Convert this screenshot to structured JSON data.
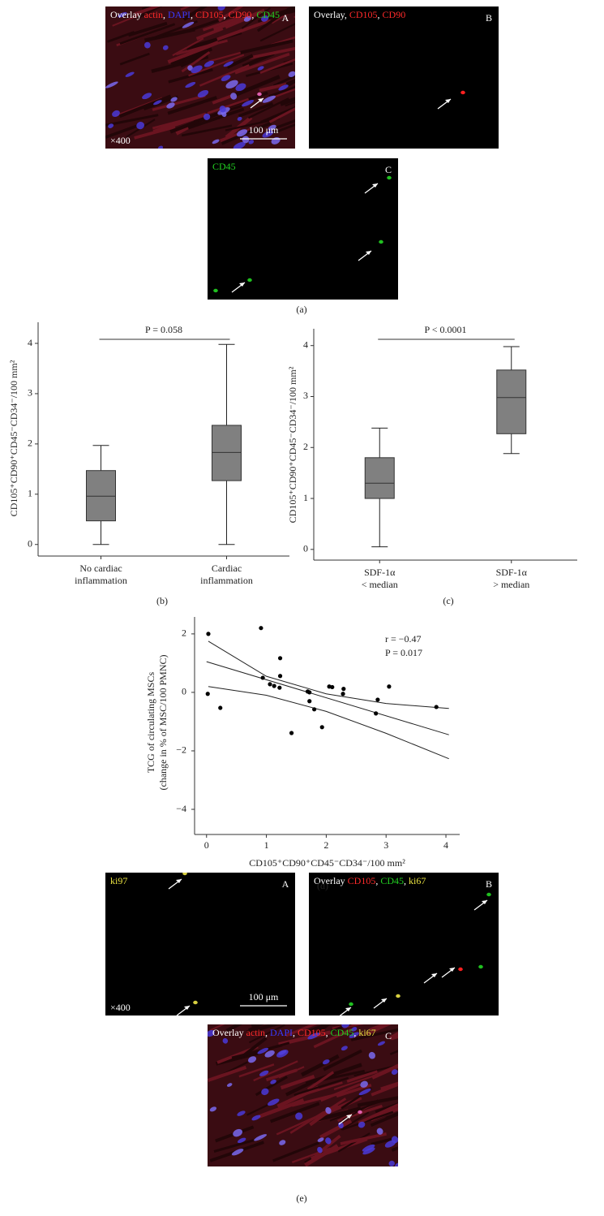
{
  "panel_a": {
    "caption": "(a)",
    "images": [
      {
        "letter": "A",
        "style": "tissue",
        "label": [
          {
            "text": "Overlay ",
            "color": "#ffffff"
          },
          {
            "text": "actin",
            "color": "#ff2a2a"
          },
          {
            "text": ", ",
            "color": "#ffffff"
          },
          {
            "text": "DAPI",
            "color": "#3a3aff"
          },
          {
            "text": ", ",
            "color": "#ffffff"
          },
          {
            "text": "CD105",
            "color": "#ff2a2a"
          },
          {
            "text": ", ",
            "color": "#ffffff"
          },
          {
            "text": "CD90",
            "color": "#ff2a2a"
          },
          {
            "text": ", ",
            "color": "#ffffff"
          },
          {
            "text": "CD45",
            "color": "#22d022"
          }
        ],
        "magnification": "×400",
        "scale_bar": "100 μm"
      },
      {
        "letter": "B",
        "style": "dark",
        "label": [
          {
            "text": "Overlay, ",
            "color": "#ffffff"
          },
          {
            "text": "CD105",
            "color": "#ff2a2a"
          },
          {
            "text": ", ",
            "color": "#ffffff"
          },
          {
            "text": "CD90",
            "color": "#ff2a2a"
          }
        ]
      },
      {
        "letter": "C",
        "style": "dark",
        "label": [
          {
            "text": "CD45",
            "color": "#22d022"
          }
        ]
      }
    ]
  },
  "chart_data": [
    {
      "type": "box",
      "caption": "(b)",
      "y_label": "CD105⁺CD90⁺CD45⁻CD34⁻/100 mm²",
      "categories": [
        "No cardiac\ninflammation",
        "Cardiac\ninflammation"
      ],
      "boxes": [
        {
          "min": 0,
          "q1": 0.47,
          "median": 0.96,
          "q3": 1.47,
          "max": 1.97
        },
        {
          "min": 0,
          "q1": 1.27,
          "median": 1.83,
          "q3": 2.37,
          "max": 3.98
        }
      ],
      "color": "#808080",
      "ylim": [
        -0.23,
        4.42
      ],
      "yticks": [
        0,
        1,
        2,
        3,
        4
      ],
      "annotation": "P = 0.058"
    },
    {
      "type": "box",
      "caption": "(c)",
      "y_label": "CD105⁺CD90⁺CD45⁻CD34⁻/100 mm²",
      "categories": [
        "SDF-1α\n< median",
        "SDF-1α\n> median"
      ],
      "boxes": [
        {
          "min": 0.05,
          "q1": 1.0,
          "median": 1.3,
          "q3": 1.8,
          "max": 2.38
        },
        {
          "min": 1.88,
          "q1": 2.27,
          "median": 2.98,
          "q3": 3.52,
          "max": 3.98
        }
      ],
      "color": "#808080",
      "ylim": [
        -0.21,
        4.33
      ],
      "yticks": [
        0,
        1,
        2,
        3,
        4
      ],
      "annotation": "P < 0.0001"
    },
    {
      "type": "scatter",
      "caption": "(d)",
      "x_label": "CD105⁺CD90⁺CD45⁻CD34⁻/100 mm²",
      "y_label": [
        "TCG of circulating MSCs",
        "(change in % of MSC/100 PMNC)"
      ],
      "x": [
        0.03,
        0.02,
        0.23,
        0.91,
        0.94,
        1.06,
        1.13,
        1.23,
        1.23,
        1.22,
        1.69,
        1.72,
        1.72,
        1.8,
        1.42,
        1.93,
        2.05,
        2.1,
        2.29,
        2.28,
        2.86,
        2.83,
        3.05,
        3.84
      ],
      "values": [
        2.0,
        -0.05,
        -0.53,
        2.2,
        0.5,
        0.28,
        0.22,
        1.17,
        0.56,
        0.16,
        0.03,
        0.0,
        -0.3,
        -0.58,
        -1.39,
        -1.19,
        0.2,
        0.18,
        0.12,
        -0.05,
        -0.25,
        -0.72,
        0.2,
        -0.5
      ],
      "color": "#000000",
      "fit": {
        "x": [
          0.0,
          4.05
        ],
        "values": [
          1.05,
          -1.45
        ]
      },
      "ci_upper": {
        "x": [
          0.03,
          1,
          2,
          3,
          4.05
        ],
        "values": [
          1.75,
          0.55,
          -0.05,
          -0.38,
          -0.55
        ]
      },
      "ci_lower": {
        "x": [
          0.03,
          1,
          2,
          3,
          4.05
        ],
        "values": [
          0.2,
          -0.1,
          -0.65,
          -1.4,
          -2.27
        ]
      },
      "xlim": [
        -0.2,
        4.23
      ],
      "ylim": [
        -4.86,
        2.58
      ],
      "xticks": [
        0,
        1,
        2,
        3,
        4
      ],
      "yticks": [
        {
          "value": -4,
          "label": "−4"
        },
        {
          "value": -2,
          "label": "−2"
        },
        0,
        2
      ],
      "annotations": [
        "r = −0.47",
        "P = 0.017"
      ]
    }
  ],
  "panel_e": {
    "caption": "(e)",
    "images": [
      {
        "letter": "A",
        "style": "dark",
        "label": [
          {
            "text": "ki97",
            "color": "#e8e040"
          }
        ],
        "magnification": "×400",
        "scale_bar": "100 μm"
      },
      {
        "letter": "B",
        "style": "dark",
        "label": [
          {
            "text": "Overlay ",
            "color": "#ffffff"
          },
          {
            "text": "CD105",
            "color": "#ff2a2a"
          },
          {
            "text": ", ",
            "color": "#ffffff"
          },
          {
            "text": "CD45",
            "color": "#22d022"
          },
          {
            "text": ", ",
            "color": "#ffffff"
          },
          {
            "text": "ki67",
            "color": "#e8e040"
          }
        ]
      },
      {
        "letter": "C",
        "style": "tissue",
        "label": [
          {
            "text": "Overlay ",
            "color": "#ffffff"
          },
          {
            "text": "actin",
            "color": "#ff2a2a"
          },
          {
            "text": ", ",
            "color": "#ffffff"
          },
          {
            "text": "DAPI",
            "color": "#3a3aff"
          },
          {
            "text": ", ",
            "color": "#ffffff"
          },
          {
            "text": "CD105",
            "color": "#ff2a2a"
          },
          {
            "text": ", ",
            "color": "#ffffff"
          },
          {
            "text": "CD45",
            "color": "#22d022"
          },
          {
            "text": ", ",
            "color": "#ffffff"
          },
          {
            "text": "ki67",
            "color": "#e8e040"
          }
        ]
      }
    ]
  }
}
